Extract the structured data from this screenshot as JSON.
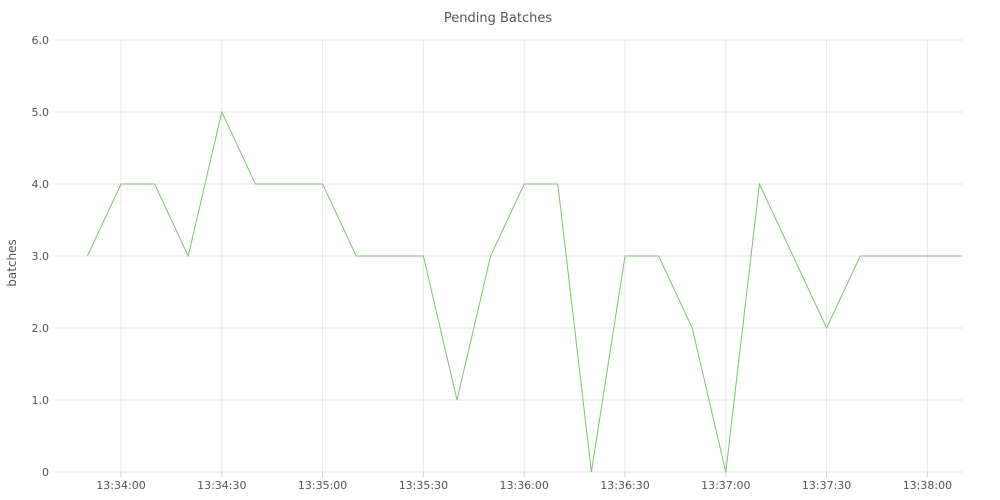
{
  "chart_data": {
    "type": "line",
    "title": "Pending Batches",
    "ylabel": "batches",
    "xlabel": "",
    "ylim": [
      0,
      6
    ],
    "y_ticks": [
      "0",
      "1.0",
      "2.0",
      "3.0",
      "4.0",
      "5.0",
      "6.0"
    ],
    "x_ticks": [
      "13:34:00",
      "13:34:30",
      "13:35:00",
      "13:35:30",
      "13:36:00",
      "13:36:30",
      "13:37:00",
      "13:37:30",
      "13:38:00"
    ],
    "grid": true,
    "x": [
      "13:33:50",
      "13:34:00",
      "13:34:10",
      "13:34:20",
      "13:34:30",
      "13:34:40",
      "13:34:50",
      "13:35:00",
      "13:35:10",
      "13:35:20",
      "13:35:30",
      "13:35:40",
      "13:35:50",
      "13:36:00",
      "13:36:10",
      "13:36:20",
      "13:36:30",
      "13:36:40",
      "13:36:50",
      "13:37:00",
      "13:37:10",
      "13:37:20",
      "13:37:30",
      "13:37:40",
      "13:37:50",
      "13:38:00",
      "13:38:10"
    ],
    "series": [
      {
        "color": "#7cc46a",
        "values": [
          3,
          4,
          4,
          3,
          5,
          4,
          4,
          4,
          3,
          3,
          3,
          1,
          3,
          4,
          4,
          0,
          3,
          3,
          2,
          0,
          4,
          3,
          2,
          3,
          3,
          3,
          3
        ]
      }
    ]
  }
}
